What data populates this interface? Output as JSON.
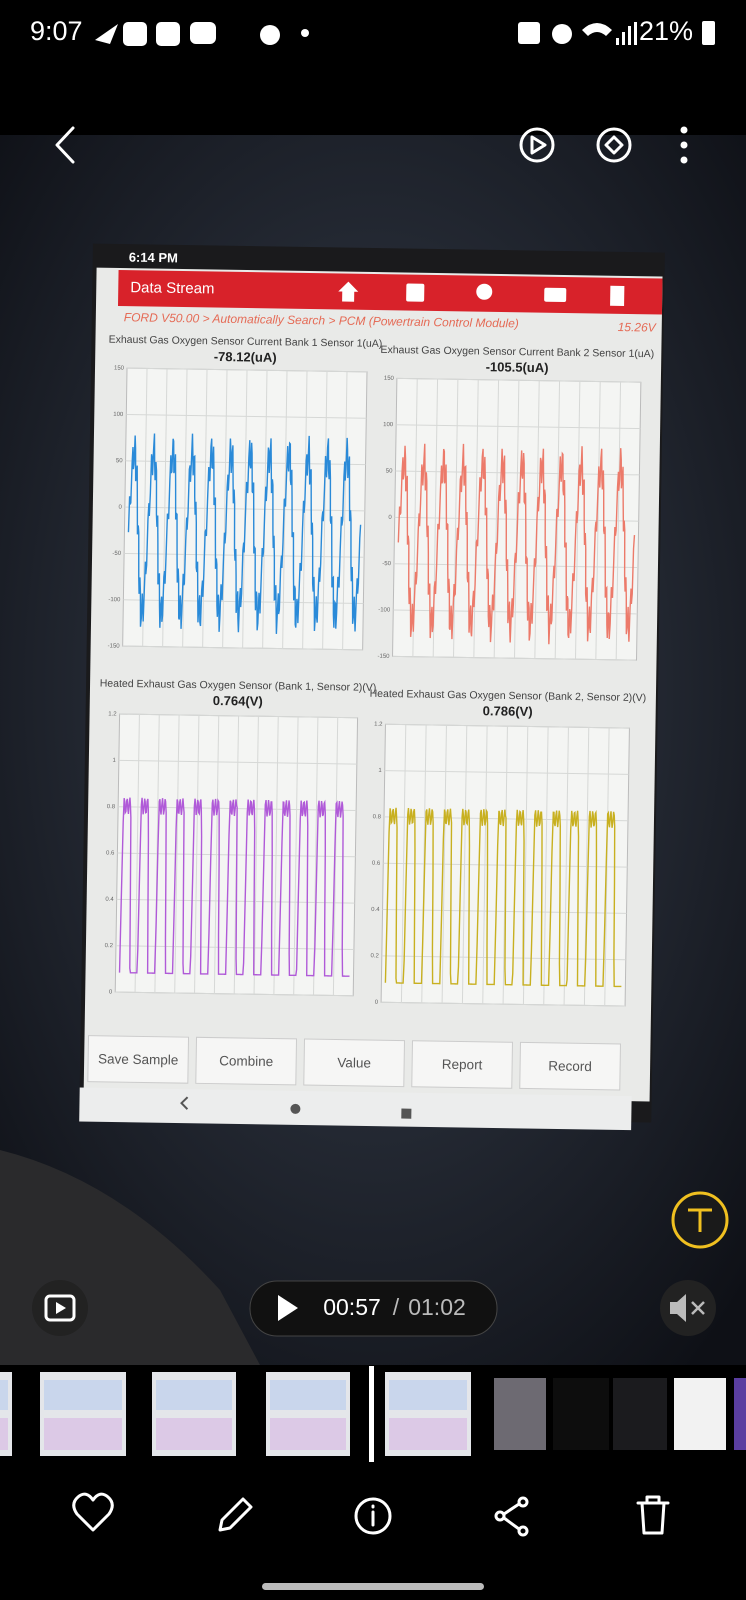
{
  "status_bar": {
    "time": "9:07",
    "battery": "21%"
  },
  "scan_tool": {
    "clock": "6:14 PM",
    "title": "Data Stream",
    "breadcrumb": "FORD V50.00 > Automatically Search > PCM (Powertrain Control Module)",
    "voltage": "15.26V",
    "panels": [
      {
        "label": "Exhaust Gas Oxygen Sensor Current Bank 1 Sensor 1(uA)",
        "reading": "-78.12(uA)",
        "color": "#2a8ad8",
        "yticks": [
          "150",
          "100",
          "50",
          "0",
          "-50",
          "-100",
          "-150"
        ]
      },
      {
        "label": "Exhaust Gas Oxygen Sensor Current Bank 2 Sensor 1(uA)",
        "reading": "-105.5(uA)",
        "color": "#ec7a6a",
        "yticks": [
          "150",
          "100",
          "50",
          "0",
          "-50",
          "-100",
          "-150"
        ]
      },
      {
        "label": "Heated Exhaust Gas Oxygen Sensor (Bank 1, Sensor 2)(V)",
        "reading": "0.764(V)",
        "color": "#b05ad8",
        "yticks": [
          "1.2",
          "1",
          "0.8",
          "0.6",
          "0.4",
          "0.2",
          "0"
        ]
      },
      {
        "label": "Heated Exhaust Gas Oxygen Sensor (Bank 2, Sensor 2)(V)",
        "reading": "0.786(V)",
        "color": "#c8b020",
        "yticks": [
          "1.2",
          "1",
          "0.8",
          "0.6",
          "0.4",
          "0.2",
          "0"
        ]
      }
    ],
    "buttons": [
      "Save Sample",
      "Combine",
      "Value",
      "Report",
      "Record"
    ]
  },
  "player": {
    "position": "00:57",
    "separator": "/",
    "duration": "01:02"
  }
}
